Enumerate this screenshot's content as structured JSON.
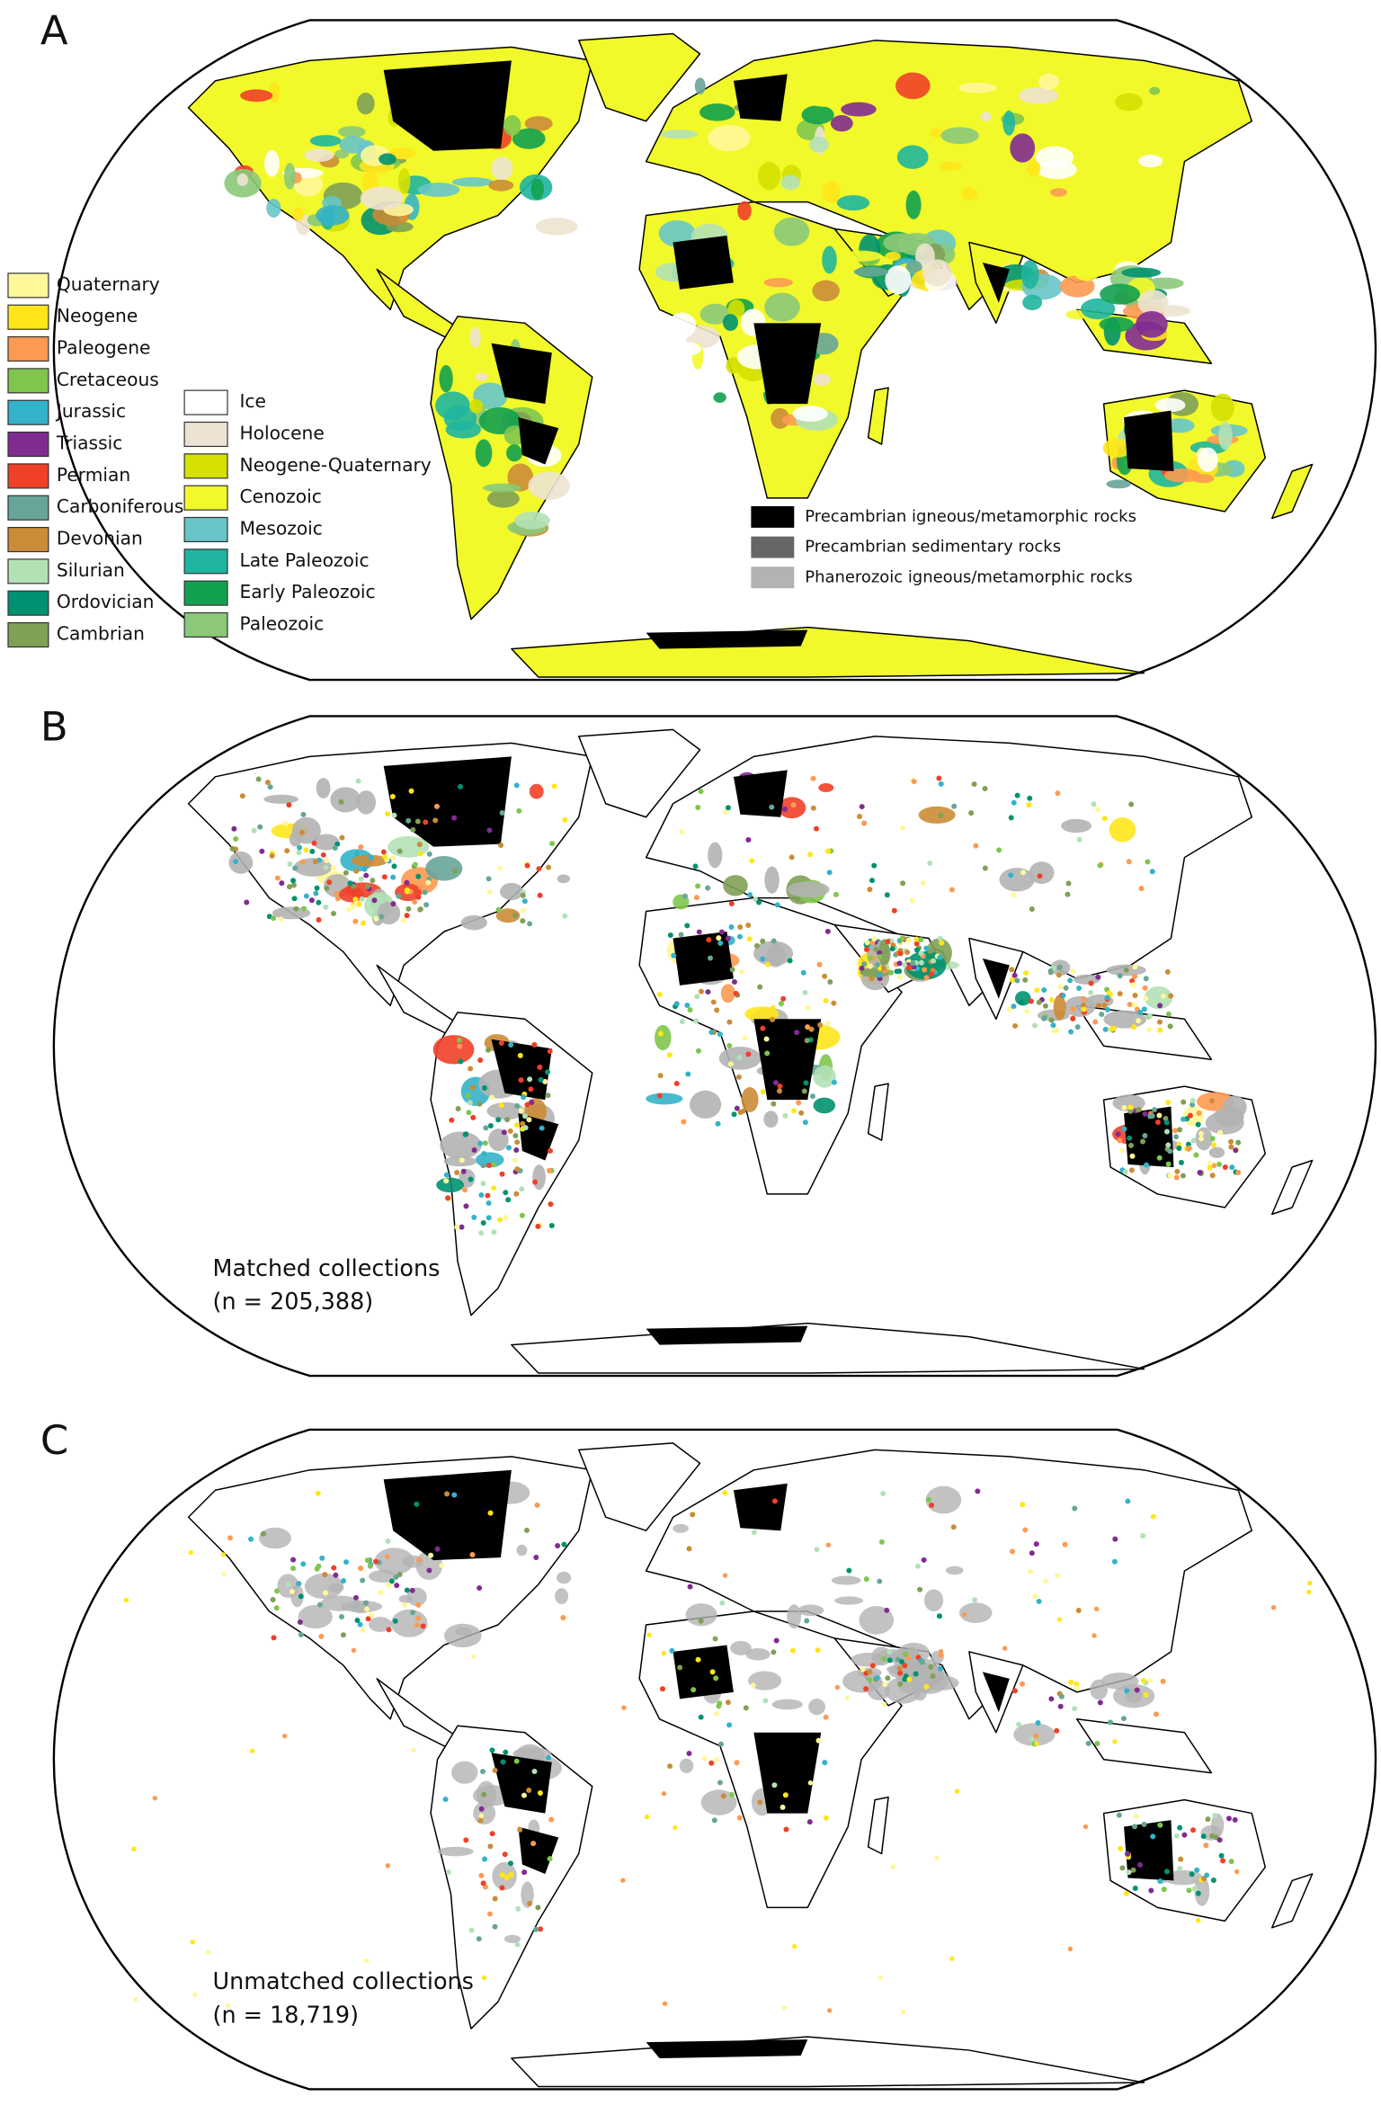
{
  "panels": [
    {
      "label": "A"
    },
    {
      "label": "B",
      "annotation": [
        "Matched collections",
        "(n = 205,388)"
      ]
    },
    {
      "label": "C",
      "annotation": [
        "Unmatched collections",
        "(n = 18,719)"
      ]
    }
  ],
  "legend": {
    "periods": [
      {
        "label": "Quaternary",
        "color": "#fff799"
      },
      {
        "label": "Neogene",
        "color": "#ffe619"
      },
      {
        "label": "Paleogene",
        "color": "#fd9a52"
      },
      {
        "label": "Cretaceous",
        "color": "#7fc64e"
      },
      {
        "label": "Jurassic",
        "color": "#34b2c9"
      },
      {
        "label": "Triassic",
        "color": "#812b92"
      },
      {
        "label": "Permian",
        "color": "#f04028"
      },
      {
        "label": "Carboniferous",
        "color": "#67a599"
      },
      {
        "label": "Devonian",
        "color": "#cb8c37"
      },
      {
        "label": "Silurian",
        "color": "#b3e1b6"
      },
      {
        "label": "Ordovician",
        "color": "#009270"
      },
      {
        "label": "Cambrian",
        "color": "#7fa056"
      }
    ],
    "eras": [
      {
        "label": "Ice",
        "color": "#ffffff"
      },
      {
        "label": "Holocene",
        "color": "#ede3d2"
      },
      {
        "label": "Neogene-Quaternary",
        "color": "#d4e000"
      },
      {
        "label": "Cenozoic",
        "color": "#f2f92a"
      },
      {
        "label": "Mesozoic",
        "color": "#67c5ca"
      },
      {
        "label": "Late Paleozoic",
        "color": "#1fb59f"
      },
      {
        "label": "Early Paleozoic",
        "color": "#12a14f"
      },
      {
        "label": "Paleozoic",
        "color": "#8bc87a"
      }
    ],
    "rocks": [
      {
        "label": "Precambrian igneous/metamorphic rocks",
        "color": "#000000"
      },
      {
        "label": "Precambrian sedimentary rocks",
        "color": "#666666"
      },
      {
        "label": "Phanerozoic igneous/metamorphic rocks",
        "color": "#b3b3b3"
      }
    ]
  }
}
